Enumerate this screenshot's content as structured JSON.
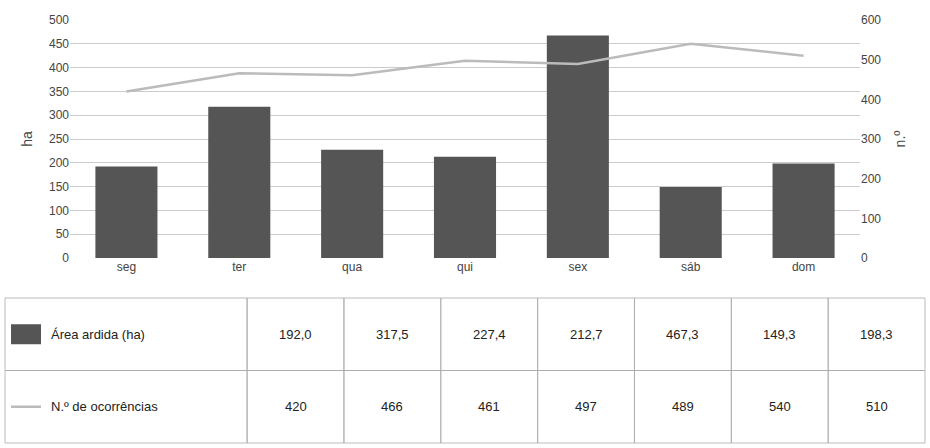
{
  "chart_data": {
    "type": "bar",
    "categories": [
      "seg",
      "ter",
      "qua",
      "qui",
      "sex",
      "sáb",
      "dom"
    ],
    "series": [
      {
        "name": "Área ardida (ha)",
        "type": "bar",
        "color": "#555555",
        "values": [
          192.0,
          317.5,
          227.4,
          212.7,
          467.3,
          149.3,
          198.3
        ],
        "value_labels": [
          "192,0",
          "317,5",
          "227,4",
          "212,7",
          "467,3",
          "149,3",
          "198,3"
        ]
      },
      {
        "name": "N.º de ocorrências",
        "type": "line",
        "color": "#bbbbbb",
        "axis": "y2",
        "values": [
          420,
          466,
          461,
          497,
          489,
          540,
          510
        ],
        "value_labels": [
          "420",
          "466",
          "461",
          "497",
          "489",
          "540",
          "510"
        ]
      }
    ],
    "ylabel": "ha",
    "y2label": "n.º",
    "ylim": [
      0,
      500
    ],
    "yticks": [
      0,
      50,
      100,
      150,
      200,
      250,
      300,
      350,
      400,
      450,
      500
    ],
    "y2lim": [
      0,
      600
    ],
    "y2ticks": [
      0,
      100,
      200,
      300,
      400,
      500,
      600
    ],
    "grid": true
  }
}
